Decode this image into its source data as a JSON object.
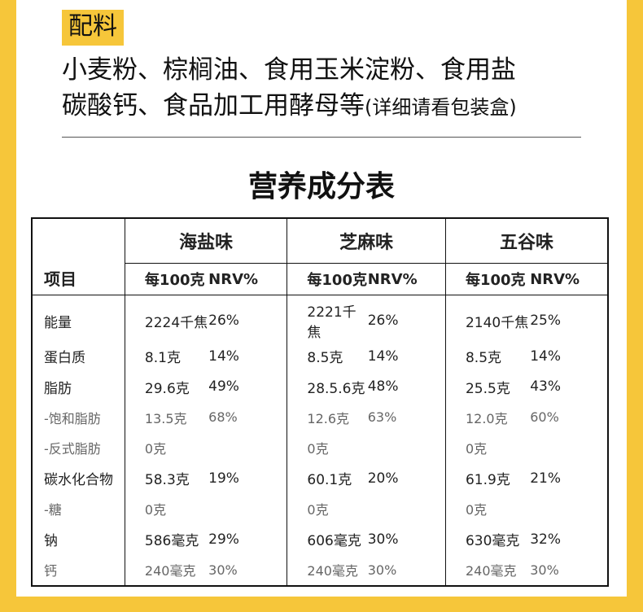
{
  "ingredients": {
    "tag": "配料",
    "line1": "小麦粉、棕榈油、食用玉米淀粉、食用盐",
    "line2_main": "碳酸钙、食品加工用酵母等",
    "line2_note": "(详细请看包装盒)"
  },
  "table": {
    "title": "营养成分表",
    "item_header": "项目",
    "flavors": [
      {
        "name": "海盐味",
        "unit_header": "每100克",
        "nrv_header": "NRV%"
      },
      {
        "name": "芝麻味",
        "unit_header": "每100克",
        "nrv_header": "NRV%"
      },
      {
        "name": "五谷味",
        "unit_header": "每100克",
        "nrv_header": "NRV%"
      }
    ],
    "rows": [
      {
        "label": "能量",
        "values": [
          "2224千焦",
          "26%",
          "2221千焦",
          "26%",
          "2140千焦",
          "25%"
        ]
      },
      {
        "label": "蛋白质",
        "values": [
          "8.1克",
          "14%",
          "8.5克",
          "14%",
          "8.5克",
          "14%"
        ]
      },
      {
        "label": "脂肪",
        "values": [
          "29.6克",
          "49%",
          "28.5.6克",
          "48%",
          "25.5克",
          "43%"
        ]
      },
      {
        "label": "-饱和脂肪",
        "values": [
          "13.5克",
          "68%",
          "12.6克",
          "63%",
          "12.0克",
          "60%"
        ]
      },
      {
        "label": "-反式脂肪",
        "values": [
          "0克",
          "",
          "0克",
          "",
          "0克",
          ""
        ]
      },
      {
        "label": "碳水化合物",
        "values": [
          "58.3克",
          "19%",
          "60.1克",
          "20%",
          "61.9克",
          "21%"
        ]
      },
      {
        "label": "-糖",
        "values": [
          "0克",
          "",
          "0克",
          "",
          "0克",
          ""
        ]
      },
      {
        "label": "钠",
        "values": [
          "586毫克",
          "29%",
          "606毫克",
          "30%",
          "630毫克",
          "32%"
        ]
      },
      {
        "label": "钙",
        "values": [
          "240毫克",
          "30%",
          "240毫克",
          "30%",
          "240毫克",
          "30%"
        ]
      }
    ]
  }
}
